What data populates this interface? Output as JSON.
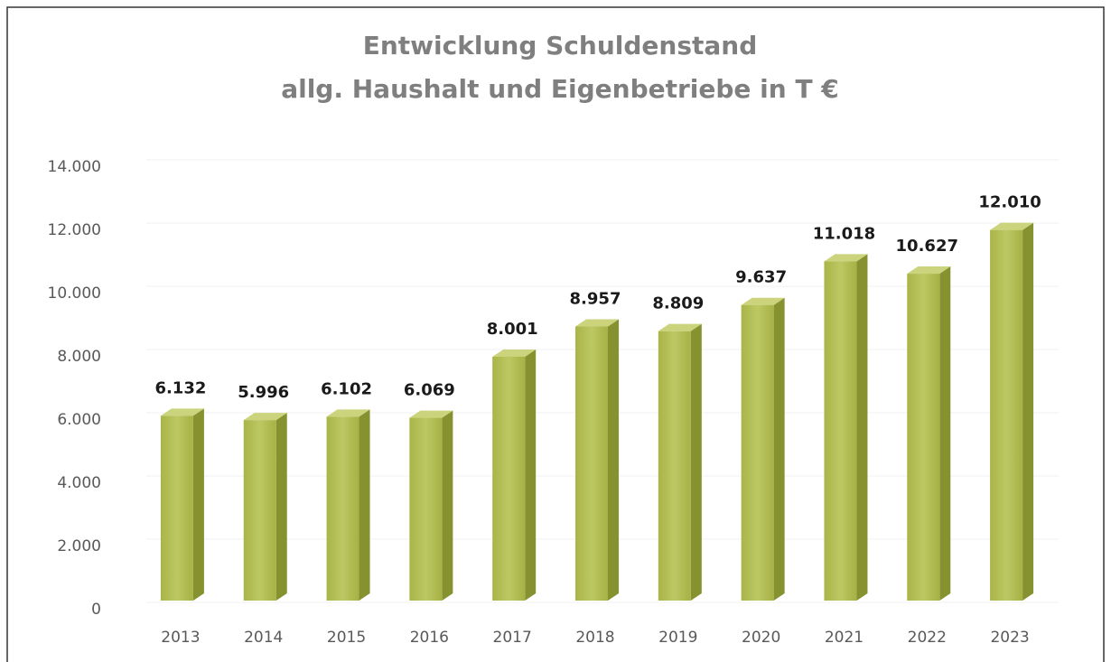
{
  "chart_data": {
    "type": "bar3d",
    "title": "Entwicklung Schuldenstand",
    "subtitle": "allg. Haushalt und Eigenbetriebe in T €",
    "categories": [
      "2013",
      "2014",
      "2015",
      "2016",
      "2017",
      "2018",
      "2019",
      "2020",
      "2021",
      "2022",
      "2023"
    ],
    "values": [
      6132,
      5996,
      6102,
      6069,
      8001,
      8957,
      8809,
      9637,
      11018,
      10627,
      12010
    ],
    "value_labels": [
      "6.132",
      "5.996",
      "6.102",
      "6.069",
      "8.001",
      "8.957",
      "8.809",
      "9.637",
      "11.018",
      "10.627",
      "12.010"
    ],
    "color": "#b3bf52",
    "ylim": [
      0,
      14000
    ],
    "yticks": [
      0,
      {
        "value": 2000,
        "label": "2.000"
      },
      {
        "value": 4000,
        "label": "4.000"
      },
      {
        "value": 6000,
        "label": "6.000"
      },
      {
        "value": 8000,
        "label": "8.000"
      },
      {
        "value": 10000,
        "label": "10.000"
      },
      {
        "value": 12000,
        "label": "12.000"
      },
      {
        "value": 14000,
        "label": "14.000"
      }
    ],
    "grid": true
  }
}
